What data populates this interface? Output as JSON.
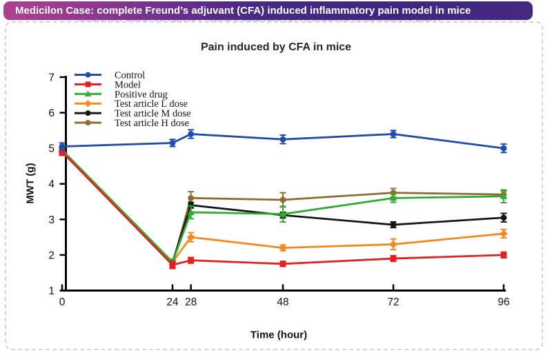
{
  "banner": {
    "text": "Medicilon Case: complete Freund’s adjuvant (CFA) induced inflammatory pain model in mice"
  },
  "chart_data": {
    "type": "line",
    "title": "Pain induced by CFA in mice",
    "xlabel": "Time (hour)",
    "ylabel": "MWT (g)",
    "x": [
      0,
      24,
      28,
      48,
      72,
      96
    ],
    "x_ticks": [
      0,
      24,
      28,
      48,
      72,
      96
    ],
    "y_ticks": [
      1,
      2,
      3,
      4,
      5,
      6,
      7
    ],
    "xlim": [
      0,
      96
    ],
    "ylim": [
      1,
      7
    ],
    "grid": false,
    "legend_position": "inside-top-left",
    "error_bars": "sem",
    "series": [
      {
        "name": "Control",
        "color": "#1f4dab",
        "marker": "circle",
        "values": [
          5.05,
          5.15,
          5.4,
          5.25,
          5.4,
          5.0
        ],
        "errors": [
          0.1,
          0.1,
          0.12,
          0.12,
          0.1,
          0.12
        ]
      },
      {
        "name": "Model",
        "color": "#e22020",
        "marker": "square",
        "values": [
          4.9,
          1.72,
          1.85,
          1.75,
          1.9,
          2.0
        ],
        "errors": [
          0.1,
          0.1,
          0.08,
          0.07,
          0.08,
          0.08
        ]
      },
      {
        "name": "Positive drug",
        "color": "#2eac32",
        "marker": "triangle",
        "values": [
          4.95,
          1.8,
          3.2,
          3.15,
          3.6,
          3.65
        ],
        "errors": [
          0.08,
          0.08,
          0.18,
          0.22,
          0.12,
          0.18
        ]
      },
      {
        "name": "Test article L dose",
        "color": "#f5891d",
        "marker": "diamond",
        "values": [
          4.9,
          1.8,
          2.5,
          2.2,
          2.3,
          2.6
        ],
        "errors": [
          0.08,
          0.08,
          0.13,
          0.08,
          0.15,
          0.12
        ]
      },
      {
        "name": "Test article M dose",
        "color": "#161616",
        "marker": "circle",
        "values": [
          4.92,
          1.8,
          3.4,
          3.12,
          2.85,
          3.05
        ],
        "errors": [
          0.08,
          0.06,
          0.08,
          0.08,
          0.08,
          0.12
        ]
      },
      {
        "name": "Test article H dose",
        "color": "#8f6c2e",
        "marker": "circle",
        "values": [
          4.9,
          1.75,
          3.6,
          3.55,
          3.75,
          3.7
        ],
        "errors": [
          0.08,
          0.08,
          0.18,
          0.2,
          0.12,
          0.1
        ]
      }
    ]
  },
  "colors": {
    "banner_gradient_left": "#ae4190",
    "banner_gradient_right": "#44297f",
    "axis": "#000000",
    "card_border": "#d3d3d8"
  }
}
